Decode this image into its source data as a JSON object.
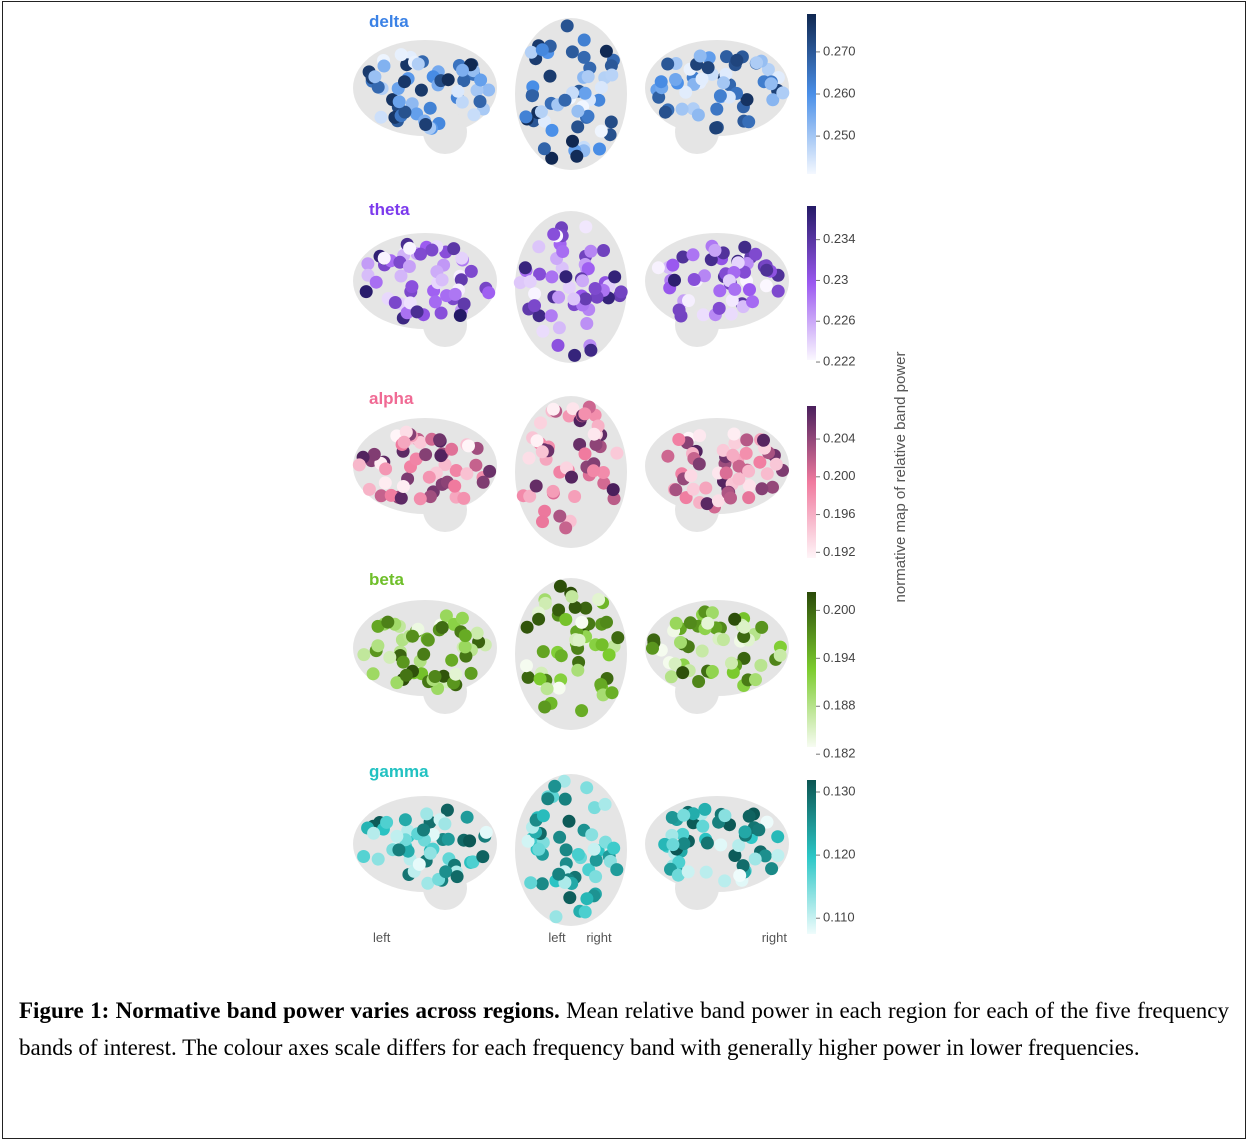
{
  "figure": {
    "panels": [
      {
        "band": "delta",
        "label_color": "#3b82e6",
        "colormap": [
          "#f4f8ff",
          "#4a8fe8",
          "#0f2750"
        ],
        "lim": [
          0.241,
          0.279
        ],
        "ticks": [
          {
            "value": 0.27,
            "label": "0.270"
          },
          {
            "value": 0.26,
            "label": "0.260"
          },
          {
            "value": 0.25,
            "label": "0.250"
          }
        ]
      },
      {
        "band": "theta",
        "label_color": "#7c3aed",
        "colormap": [
          "#fbf8ff",
          "#9b59f0",
          "#241a66"
        ],
        "lim": [
          0.2222,
          0.2373
        ],
        "ticks": [
          0.234,
          0.23,
          0.226,
          0.222
        ]
      },
      {
        "band": "alpha",
        "label_color": "#f06a94",
        "colormap": [
          "#fff5f8",
          "#f07a9e",
          "#4a1f5c"
        ],
        "lim": [
          0.1914,
          0.2075
        ],
        "ticks": [
          0.204,
          {
            "value": 0.2,
            "label": "0.200"
          },
          0.196,
          0.192
        ]
      },
      {
        "band": "beta",
        "label_color": "#6fbf2a",
        "colormap": [
          "#f7fcf2",
          "#7ccc2e",
          "#2a4a08"
        ],
        "lim": [
          0.1829,
          0.2023
        ],
        "ticks": [
          {
            "value": 0.2,
            "label": "0.200"
          },
          0.194,
          0.188,
          0.182
        ]
      },
      {
        "band": "gamma",
        "label_color": "#22c2c2",
        "colormap": [
          "#effcfc",
          "#2cc7c7",
          "#0b5552"
        ],
        "lim": [
          0.1075,
          0.1319
        ],
        "ticks": [
          {
            "value": 0.13,
            "label": "0.130"
          },
          {
            "value": 0.12,
            "label": "0.120"
          },
          {
            "value": 0.11,
            "label": "0.110"
          }
        ]
      }
    ],
    "colorbar_label": "normative map of relative band power",
    "view_labels": [
      "left",
      "left",
      "right",
      "right"
    ]
  },
  "caption": {
    "label": "Figure 1: Normative band power varies across regions.",
    "text": "Mean relative band power in each region for each of the five frequency bands of interest. The colour axes scale differs for each frequency band with generally higher power in lower frequencies."
  }
}
